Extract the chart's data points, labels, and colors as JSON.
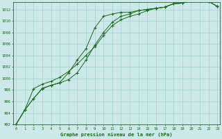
{
  "title": "Graphe pression niveau de la mer (hPa)",
  "ylim": [
    992,
    1013
  ],
  "yticks": [
    992,
    994,
    996,
    998,
    1000,
    1002,
    1004,
    1006,
    1008,
    1010,
    1012
  ],
  "xticks": [
    0,
    1,
    2,
    3,
    4,
    5,
    6,
    7,
    8,
    9,
    10,
    11,
    12,
    13,
    14,
    15,
    16,
    17,
    18,
    19,
    20,
    21,
    22,
    23
  ],
  "line_color": "#1a6b1a",
  "bg_color": "#cce8e8",
  "grid_color": "#99cccc",
  "series1": [
    992,
    994.5,
    996.5,
    998.3,
    998.8,
    999.3,
    1001.0,
    1003.2,
    1005.2,
    1008.8,
    1010.8,
    1011.2,
    1011.5,
    1011.5,
    1011.8,
    1012.0,
    1012.2,
    1012.4,
    1013.0,
    1013.1,
    1013.5,
    1013.5,
    1013.4,
    1012.5
  ],
  "series2": [
    992,
    994.5,
    996.5,
    998.2,
    998.8,
    999.2,
    999.8,
    1001.0,
    1003.2,
    1005.8,
    1008.0,
    1009.8,
    1010.8,
    1011.2,
    1011.8,
    1012.0,
    1012.2,
    1012.4,
    1013.0,
    1013.1,
    1013.5,
    1013.5,
    1013.4,
    1012.5
  ],
  "series3": [
    992,
    994.5,
    998.2,
    999.0,
    999.5,
    1000.2,
    1001.2,
    1002.5,
    1004.0,
    1005.5,
    1007.5,
    1009.2,
    1010.2,
    1010.8,
    1011.2,
    1011.8,
    1012.2,
    1012.4,
    1013.0,
    1013.1,
    1013.5,
    1013.5,
    1013.4,
    1012.5
  ],
  "figwidth": 3.2,
  "figheight": 2.0,
  "dpi": 100
}
